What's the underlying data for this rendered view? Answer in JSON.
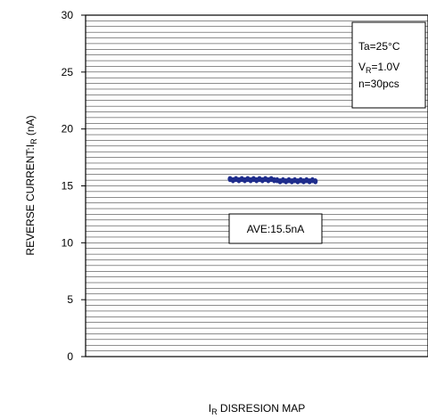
{
  "chart_data": {
    "type": "scatter",
    "title": "",
    "ylabel": {
      "main": "REVERSE CURRENT:I",
      "sub": "R",
      "unit": " (nA)"
    },
    "xlabel": {
      "main": "I",
      "sub": "R",
      "rest": " DISRESION MAP"
    },
    "ylim": [
      0,
      30
    ],
    "yticks": [
      "0",
      "5",
      "10",
      "15",
      "20",
      "25",
      "30"
    ],
    "grid": true,
    "conditions": {
      "ta": "Ta=25°C",
      "vr_main": "V",
      "vr_sub": "R",
      "vr_rest": "=1.0V",
      "n": "n=30pcs"
    },
    "average_label": "AVE:15.5nA",
    "series": [
      {
        "color": "#1f2d8c",
        "values": [
          15.6,
          15.5,
          15.6,
          15.5,
          15.6,
          15.5,
          15.6,
          15.5,
          15.6,
          15.5,
          15.6,
          15.5,
          15.6,
          15.5,
          15.6,
          15.5,
          15.5,
          15.4,
          15.5,
          15.4,
          15.5,
          15.4,
          15.5,
          15.4,
          15.5,
          15.4,
          15.5,
          15.4,
          15.5,
          15.4
        ]
      }
    ]
  }
}
